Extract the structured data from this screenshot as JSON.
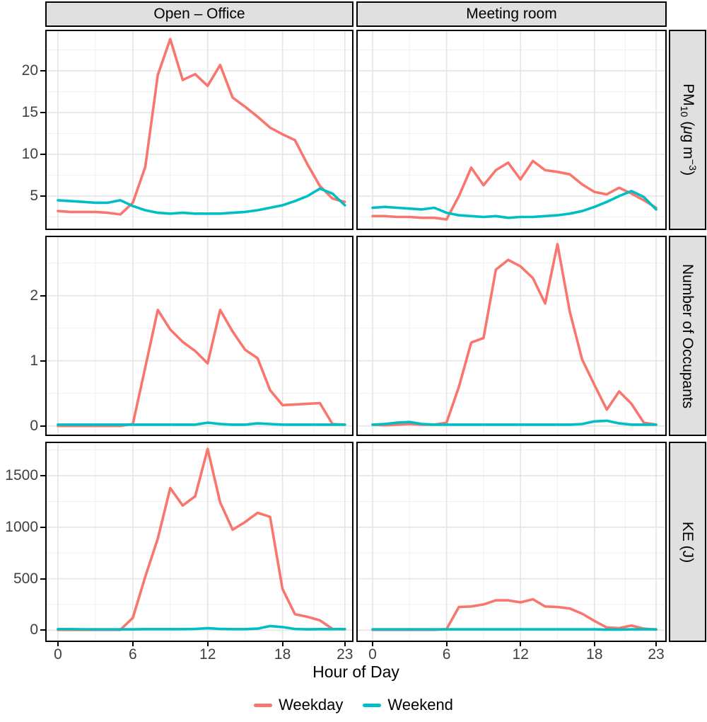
{
  "figure": {
    "kind": "faceted line chart",
    "x_axis_title": "Hour of Day"
  },
  "facets": {
    "columns": [
      "Open – Office",
      "Meeting room"
    ],
    "rows": [
      {
        "pre": "PM",
        "sub": "10",
        "mid1": " (",
        "mu": "μ",
        "mid2": "g m",
        "sup": "−3",
        "post": ")",
        "plain": "PM₁₀ (μg m⁻³)"
      },
      {
        "plain": "Number of Occupants"
      },
      {
        "plain": "KE (J)"
      }
    ]
  },
  "axes": {
    "x_title": "Hour of Day",
    "x_major_ticks": [
      0,
      6,
      12,
      18,
      23
    ],
    "x_minor_ticks": [
      3,
      9,
      15,
      20.5
    ],
    "x_ranges": [
      [
        -1.02,
        23.69
      ],
      [
        -1.32,
        23.86
      ]
    ],
    "rows": [
      {
        "major": [
          5,
          10,
          15,
          20
        ],
        "minor": [
          2.5,
          7.5,
          12.5,
          17.5,
          22.5
        ],
        "range": [
          0.93,
          24.92
        ]
      },
      {
        "major": [
          0,
          1,
          2
        ],
        "minor": [
          0.5,
          1.5,
          2.5
        ],
        "range": [
          -0.155,
          2.92
        ]
      },
      {
        "major": [
          0,
          500,
          1000,
          1500
        ],
        "minor": [
          250,
          750,
          1250,
          1750
        ],
        "range": [
          -115,
          1830
        ]
      }
    ]
  },
  "legend": [
    {
      "label": "Weekday",
      "color": "#F8766D"
    },
    {
      "label": "Weekend",
      "color": "#00BFC4"
    }
  ],
  "colors": {
    "weekday": "#F8766D",
    "weekend": "#00BFC4",
    "grid_major": "#e4e4e4",
    "grid_minor": "#f1f1f1",
    "panel_border": "#000000",
    "strip_bg": "#e0e0e0",
    "tick_text": "#3f3f3f"
  },
  "chart_data": [
    {
      "type": "line",
      "row": 0,
      "col": 0,
      "row_label": "PM₁₀ (μg m⁻³)",
      "col_label": "Open – Office",
      "xlabel": "Hour of Day",
      "ylim": [
        0.93,
        24.92
      ],
      "grid": true,
      "x": [
        0,
        1,
        2,
        3,
        4,
        5,
        6,
        7,
        8,
        9,
        10,
        11,
        12,
        13,
        14,
        15,
        16,
        17,
        18,
        19,
        20,
        21,
        22,
        23
      ],
      "series": [
        {
          "name": "Weekday",
          "values": [
            3.2,
            3.1,
            3.1,
            3.1,
            3.0,
            2.8,
            4.2,
            8.5,
            19.5,
            23.8,
            18.9,
            19.6,
            18.2,
            20.7,
            16.8,
            15.7,
            14.5,
            13.2,
            12.4,
            11.7,
            8.8,
            6.2,
            4.7,
            4.3
          ]
        },
        {
          "name": "Weekend",
          "values": [
            4.5,
            4.4,
            4.3,
            4.2,
            4.2,
            4.5,
            3.8,
            3.3,
            3.0,
            2.9,
            3.0,
            2.9,
            2.9,
            2.9,
            3.0,
            3.1,
            3.3,
            3.6,
            3.9,
            4.4,
            5.0,
            5.9,
            5.3,
            3.9
          ]
        }
      ]
    },
    {
      "type": "line",
      "row": 0,
      "col": 1,
      "row_label": "PM₁₀ (μg m⁻³)",
      "col_label": "Meeting room",
      "xlabel": "Hour of Day",
      "ylim": [
        0.93,
        24.92
      ],
      "grid": true,
      "x": [
        0,
        1,
        2,
        3,
        4,
        5,
        6,
        7,
        8,
        9,
        10,
        11,
        12,
        13,
        14,
        15,
        16,
        17,
        18,
        19,
        20,
        21,
        22,
        23
      ],
      "series": [
        {
          "name": "Weekday",
          "values": [
            2.6,
            2.6,
            2.5,
            2.5,
            2.4,
            2.4,
            2.2,
            5.0,
            8.4,
            6.3,
            8.1,
            9.0,
            7.0,
            9.2,
            8.1,
            7.9,
            7.6,
            6.4,
            5.5,
            5.2,
            6.0,
            5.3,
            4.5,
            3.6
          ]
        },
        {
          "name": "Weekend",
          "values": [
            3.6,
            3.7,
            3.6,
            3.5,
            3.4,
            3.6,
            3.0,
            2.7,
            2.6,
            2.5,
            2.6,
            2.4,
            2.5,
            2.5,
            2.6,
            2.7,
            2.9,
            3.2,
            3.7,
            4.3,
            5.0,
            5.6,
            4.9,
            3.4
          ]
        }
      ]
    },
    {
      "type": "line",
      "row": 1,
      "col": 0,
      "row_label": "Number of Occupants",
      "col_label": "Open – Office",
      "xlabel": "Hour of Day",
      "ylim": [
        -0.155,
        2.92
      ],
      "grid": true,
      "x": [
        0,
        1,
        2,
        3,
        4,
        5,
        6,
        7,
        8,
        9,
        10,
        11,
        12,
        13,
        14,
        15,
        16,
        17,
        18,
        19,
        20,
        21,
        22,
        23
      ],
      "series": [
        {
          "name": "Weekday",
          "values": [
            0,
            0,
            0,
            0,
            0,
            0,
            0.03,
            0.9,
            1.78,
            1.48,
            1.29,
            1.15,
            0.96,
            1.78,
            1.45,
            1.17,
            1.04,
            0.55,
            0.32,
            0.33,
            0.34,
            0.35,
            0.03,
            0.02
          ]
        },
        {
          "name": "Weekend",
          "values": [
            0.02,
            0.02,
            0.02,
            0.02,
            0.02,
            0.02,
            0.02,
            0.02,
            0.02,
            0.02,
            0.02,
            0.02,
            0.05,
            0.03,
            0.02,
            0.02,
            0.04,
            0.03,
            0.02,
            0.02,
            0.02,
            0.02,
            0.02,
            0.02
          ]
        }
      ]
    },
    {
      "type": "line",
      "row": 1,
      "col": 1,
      "row_label": "Number of Occupants",
      "col_label": "Meeting room",
      "xlabel": "Hour of Day",
      "ylim": [
        -0.155,
        2.92
      ],
      "grid": true,
      "x": [
        0,
        1,
        2,
        3,
        4,
        5,
        6,
        7,
        8,
        9,
        10,
        11,
        12,
        13,
        14,
        15,
        16,
        17,
        18,
        19,
        20,
        21,
        22,
        23
      ],
      "series": [
        {
          "name": "Weekday",
          "values": [
            0.02,
            0.01,
            0.02,
            0.03,
            0.02,
            0.02,
            0.05,
            0.6,
            1.28,
            1.35,
            2.4,
            2.55,
            2.45,
            2.27,
            1.88,
            2.79,
            1.75,
            1.02,
            0.63,
            0.25,
            0.53,
            0.34,
            0.05,
            0.02
          ]
        },
        {
          "name": "Weekend",
          "values": [
            0.02,
            0.03,
            0.05,
            0.06,
            0.03,
            0.02,
            0.02,
            0.02,
            0.02,
            0.02,
            0.02,
            0.02,
            0.02,
            0.02,
            0.02,
            0.02,
            0.02,
            0.03,
            0.07,
            0.08,
            0.04,
            0.02,
            0.02,
            0.02
          ]
        }
      ]
    },
    {
      "type": "line",
      "row": 2,
      "col": 0,
      "row_label": "KE (J)",
      "col_label": "Open – Office",
      "xlabel": "Hour of Day",
      "ylim": [
        -115,
        1830
      ],
      "grid": true,
      "x": [
        0,
        1,
        2,
        3,
        4,
        5,
        6,
        7,
        8,
        9,
        10,
        11,
        12,
        13,
        14,
        15,
        16,
        17,
        18,
        19,
        20,
        21,
        22,
        23
      ],
      "series": [
        {
          "name": "Weekday",
          "values": [
            3,
            3,
            3,
            3,
            3,
            3,
            120,
            520,
            890,
            1380,
            1210,
            1300,
            1760,
            1240,
            975,
            1050,
            1140,
            1100,
            400,
            155,
            130,
            95,
            12,
            10
          ]
        },
        {
          "name": "Weekend",
          "values": [
            10,
            10,
            9,
            8,
            8,
            8,
            8,
            10,
            10,
            10,
            10,
            12,
            20,
            12,
            10,
            10,
            15,
            40,
            30,
            12,
            8,
            10,
            10,
            10
          ]
        }
      ]
    },
    {
      "type": "line",
      "row": 2,
      "col": 1,
      "row_label": "KE (J)",
      "col_label": "Meeting room",
      "xlabel": "Hour of Day",
      "ylim": [
        -115,
        1830
      ],
      "grid": true,
      "x": [
        0,
        1,
        2,
        3,
        4,
        5,
        6,
        7,
        8,
        9,
        10,
        11,
        12,
        13,
        14,
        15,
        16,
        17,
        18,
        19,
        20,
        21,
        22,
        23
      ],
      "series": [
        {
          "name": "Weekday",
          "values": [
            3,
            3,
            3,
            3,
            3,
            3,
            10,
            225,
            230,
            250,
            290,
            290,
            270,
            300,
            230,
            225,
            210,
            160,
            90,
            25,
            20,
            45,
            15,
            5
          ]
        },
        {
          "name": "Weekend",
          "values": [
            8,
            8,
            8,
            8,
            8,
            8,
            8,
            8,
            8,
            8,
            8,
            8,
            8,
            8,
            8,
            8,
            8,
            8,
            8,
            6,
            6,
            8,
            8,
            8
          ]
        }
      ]
    }
  ]
}
